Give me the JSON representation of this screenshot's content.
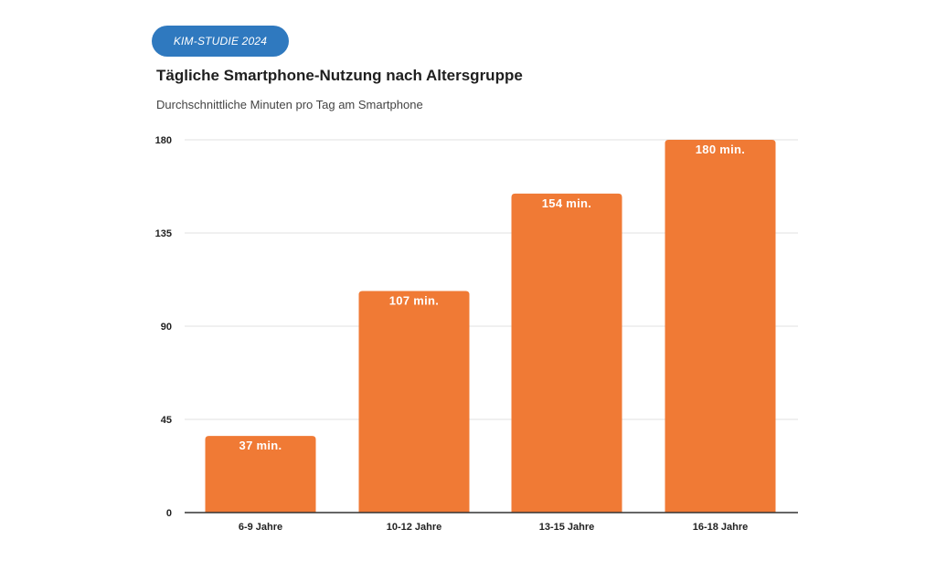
{
  "badge": "KIM-STUDIE 2024",
  "title": "Tägliche Smartphone-Nutzung nach Altersgruppe",
  "subtitle": "Durchschnittliche Minuten pro Tag am Smartphone",
  "colors": {
    "bar": "#f07a35",
    "badge": "#2f79bf",
    "grid": "#e2e2e2",
    "axis": "#333333"
  },
  "chart_data": {
    "type": "bar",
    "categories": [
      "6-9 Jahre",
      "10-12 Jahre",
      "13-15 Jahre",
      "16-18 Jahre"
    ],
    "values": [
      37,
      107,
      154,
      180
    ],
    "data_labels": [
      "37 min.",
      "107 min.",
      "154 min.",
      "180 min."
    ],
    "yticks": [
      0,
      45,
      90,
      135,
      180
    ],
    "ylim": [
      0,
      180
    ],
    "grid": true,
    "legend": "none",
    "title": "Tägliche Smartphone-Nutzung nach Altersgruppe",
    "subtitle": "Durchschnittliche Minuten pro Tag am Smartphone",
    "xlabel": "",
    "ylabel": ""
  }
}
